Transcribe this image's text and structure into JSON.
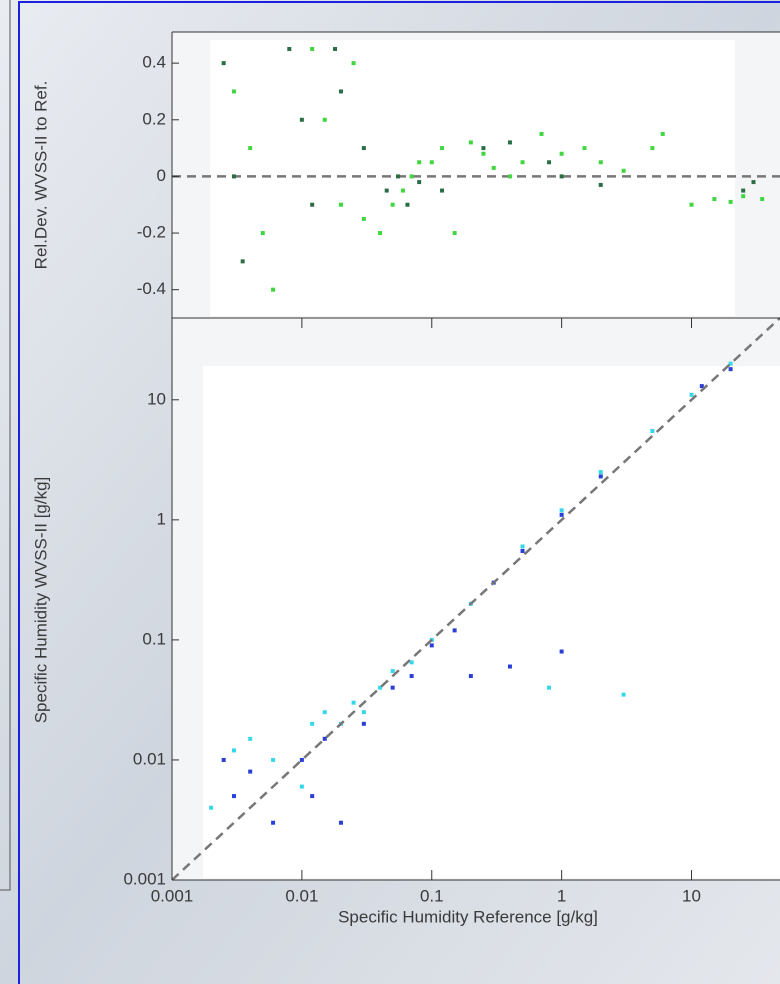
{
  "chart_data": [
    {
      "type": "scatter",
      "ylabel": "Rel.Dev. WVSS-II to Ref.",
      "xlog": true,
      "xlim": [
        0.001,
        48
      ],
      "ylim": [
        -0.5,
        0.51
      ],
      "yticks": [
        0.4,
        0.2,
        0,
        -0.2,
        -0.4
      ],
      "series": [
        {
          "color": "#3fd63f",
          "x": [
            0.003,
            0.004,
            0.005,
            0.006,
            0.012,
            0.015,
            0.02,
            0.025,
            0.03,
            0.04,
            0.05,
            0.06,
            0.07,
            0.08,
            0.1,
            0.12,
            0.15,
            0.2,
            0.25,
            0.3,
            0.4,
            0.5,
            0.7,
            1,
            1.5,
            2,
            3,
            5,
            6,
            10,
            15,
            20,
            25,
            35
          ],
          "values": [
            0.3,
            0.1,
            -0.2,
            -0.4,
            0.45,
            0.2,
            -0.1,
            0.4,
            -0.15,
            -0.2,
            -0.1,
            -0.05,
            0,
            0.05,
            0.05,
            0.1,
            -0.2,
            0.12,
            0.08,
            0.03,
            0,
            0.05,
            0.15,
            0.08,
            0.1,
            0.05,
            0.02,
            0.1,
            0.15,
            -0.1,
            -0.08,
            -0.09,
            -0.07,
            -0.08
          ]
        },
        {
          "color": "#2b6e45",
          "x": [
            0.0025,
            0.003,
            0.0035,
            0.008,
            0.01,
            0.012,
            0.018,
            0.02,
            0.03,
            0.045,
            0.055,
            0.065,
            0.08,
            0.12,
            0.25,
            0.4,
            0.8,
            1,
            2,
            25,
            30
          ],
          "values": [
            0.4,
            0,
            -0.3,
            0.45,
            0.2,
            -0.1,
            0.45,
            0.3,
            0.1,
            -0.05,
            0,
            -0.1,
            -0.02,
            -0.05,
            0.1,
            0.12,
            0.05,
            0,
            -0.03,
            -0.05,
            -0.02
          ]
        }
      ]
    },
    {
      "type": "scatter",
      "xlabel": "Specific Humidity Reference [g/kg]",
      "ylabel": "Specific Humidity  WVSS-II [g/kg]",
      "xlog": true,
      "ylog": true,
      "xlim": [
        0.001,
        48
      ],
      "ylim": [
        0.001,
        48
      ],
      "xticks": [
        0.001,
        0.01,
        0.1,
        1,
        10
      ],
      "yticks": [
        0.001,
        0.01,
        0.1,
        1,
        10
      ],
      "series": [
        {
          "color": "#35d8e8",
          "x": [
            0.002,
            0.003,
            0.004,
            0.006,
            0.01,
            0.012,
            0.015,
            0.02,
            0.025,
            0.03,
            0.04,
            0.05,
            0.07,
            0.1,
            0.2,
            0.5,
            1,
            2,
            5,
            10,
            20,
            3,
            0.8
          ],
          "values": [
            0.004,
            0.012,
            0.015,
            0.01,
            0.006,
            0.02,
            0.025,
            0.02,
            0.03,
            0.025,
            0.04,
            0.055,
            0.065,
            0.1,
            0.2,
            0.6,
            1.2,
            2.5,
            5.5,
            11,
            20,
            0.035,
            0.04
          ]
        },
        {
          "color": "#2a3fd8",
          "x": [
            0.0025,
            0.003,
            0.004,
            0.006,
            0.01,
            0.012,
            0.015,
            0.02,
            0.03,
            0.05,
            0.07,
            0.1,
            0.15,
            0.3,
            0.5,
            1,
            2,
            0.2,
            0.4,
            1,
            12,
            20
          ],
          "values": [
            0.01,
            0.005,
            0.008,
            0.003,
            0.01,
            0.005,
            0.015,
            0.003,
            0.02,
            0.04,
            0.05,
            0.09,
            0.12,
            0.3,
            0.55,
            1.1,
            2.3,
            0.05,
            0.06,
            0.08,
            13,
            18
          ]
        }
      ]
    }
  ]
}
